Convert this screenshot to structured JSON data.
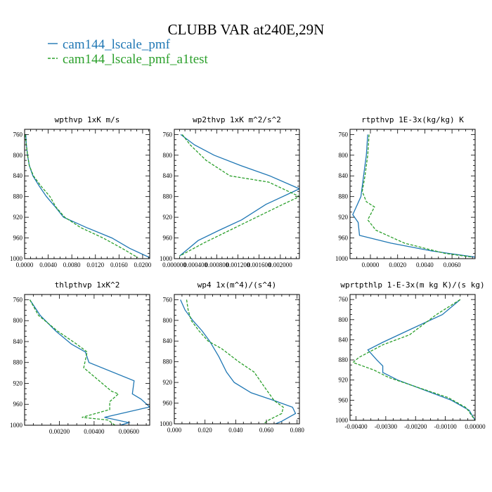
{
  "figure": {
    "title": "CLUBB VAR at240E,29N"
  },
  "colors": {
    "series1": "#1f77b4",
    "series2": "#2ca02c"
  },
  "legend": [
    {
      "label": "cam144_lscale_pmf",
      "color": "#1f77b4",
      "dash": "solid"
    },
    {
      "label": "cam144_lscale_pmf_a1test",
      "color": "#2ca02c",
      "dash": "dashed"
    }
  ],
  "chart_data": [
    {
      "type": "line",
      "title": "wpthvp  1xK m/s",
      "xlim": [
        0,
        0.0212
      ],
      "ylim": [
        1000,
        750
      ],
      "yticks": [
        760,
        800,
        840,
        880,
        920,
        960,
        1000
      ],
      "xtick_values": [
        0.0,
        0.004,
        0.008,
        0.012,
        0.016,
        0.02
      ],
      "xtick_labels": [
        "0.0000",
        "0.0040",
        "0.0080",
        "0.0120",
        "0.0160",
        "0.0200"
      ],
      "series": [
        {
          "name": "cam144_lscale_pmf",
          "points": [
            [
              0.0002,
              760
            ],
            [
              0.0003,
              780
            ],
            [
              0.0005,
              800
            ],
            [
              0.0008,
              820
            ],
            [
              0.0014,
              840
            ],
            [
              0.0025,
              860
            ],
            [
              0.0037,
              880
            ],
            [
              0.0052,
              900
            ],
            [
              0.0066,
              920
            ],
            [
              0.0105,
              940
            ],
            [
              0.0148,
              960
            ],
            [
              0.0178,
              980
            ],
            [
              0.0212,
              998
            ]
          ]
        },
        {
          "name": "cam144_lscale_pmf_a1test",
          "points": [
            [
              0.0001,
              760
            ],
            [
              0.0003,
              780
            ],
            [
              0.0005,
              800
            ],
            [
              0.0008,
              820
            ],
            [
              0.0015,
              840
            ],
            [
              0.0028,
              860
            ],
            [
              0.0043,
              880
            ],
            [
              0.0053,
              900
            ],
            [
              0.0068,
              920
            ],
            [
              0.0095,
              940
            ],
            [
              0.0133,
              960
            ],
            [
              0.0165,
              980
            ],
            [
              0.0192,
              998
            ]
          ]
        }
      ]
    },
    {
      "type": "line",
      "title": "wp2thvp  1xK m^2/s^2",
      "xlim": [
        0,
        0.00236
      ],
      "ylim": [
        1000,
        750
      ],
      "yticks": [
        760,
        800,
        840,
        880,
        920,
        960,
        1000
      ],
      "xtick_values": [
        0.0,
        0.0004,
        0.0008,
        0.0012,
        0.0016,
        0.002
      ],
      "xtick_labels": [
        "0.000000",
        "0.000400",
        "0.000800",
        "0.001200",
        "0.001600",
        "0.002000"
      ],
      "series": [
        {
          "name": "cam144_lscale_pmf",
          "points": [
            [
              0.00012,
              760
            ],
            [
              0.00038,
              780
            ],
            [
              0.00075,
              800
            ],
            [
              0.00125,
              820
            ],
            [
              0.0018,
              840
            ],
            [
              0.00236,
              865
            ],
            [
              0.00173,
              895
            ],
            [
              0.00127,
              925
            ],
            [
              0.00085,
              945
            ],
            [
              0.00045,
              965
            ],
            [
              0.0001,
              995
            ]
          ]
        },
        {
          "name": "cam144_lscale_pmf_a1test",
          "points": [
            [
              0.00015,
              760
            ],
            [
              0.0003,
              780
            ],
            [
              0.0006,
              810
            ],
            [
              0.00105,
              840
            ],
            [
              0.00178,
              852
            ],
            [
              0.00236,
              880
            ],
            [
              0.00205,
              895
            ],
            [
              0.00165,
              915
            ],
            [
              0.00115,
              940
            ],
            [
              0.00055,
              970
            ],
            [
              0.0001,
              995
            ]
          ]
        }
      ]
    },
    {
      "type": "line",
      "title": "rtpthvp  1E-3x(kg/kg) K",
      "xlim": [
        -0.0015,
        0.0077
      ],
      "ylim": [
        1000,
        750
      ],
      "yticks": [
        760,
        800,
        840,
        880,
        920,
        960,
        1000
      ],
      "xtick_values": [
        0.0,
        0.002,
        0.004,
        0.006
      ],
      "xtick_labels": [
        "0.0000",
        "0.0020",
        "0.0040",
        "0.0060"
      ],
      "series": [
        {
          "name": "cam144_lscale_pmf",
          "points": [
            [
              -0.0002,
              760
            ],
            [
              -0.0003,
              800
            ],
            [
              -0.0005,
              840
            ],
            [
              -0.0007,
              880
            ],
            [
              -0.0013,
              915
            ],
            [
              -0.0009,
              930
            ],
            [
              -0.0008,
              955
            ],
            [
              0.0015,
              970
            ],
            [
              0.0045,
              985
            ],
            [
              0.0077,
              997
            ]
          ]
        },
        {
          "name": "cam144_lscale_pmf_a1test",
          "points": [
            [
              -0.0001,
              760
            ],
            [
              -0.0002,
              800
            ],
            [
              -0.0004,
              840
            ],
            [
              -0.0006,
              870
            ],
            [
              -0.0003,
              890
            ],
            [
              0.0003,
              900
            ],
            [
              -0.0002,
              925
            ],
            [
              0.0004,
              945
            ],
            [
              0.0025,
              970
            ],
            [
              0.0055,
              990
            ],
            [
              0.0075,
              997
            ]
          ]
        }
      ]
    },
    {
      "type": "line",
      "title": "thlpthvp  1xK^2",
      "xlim": [
        0,
        0.0072
      ],
      "ylim": [
        1000,
        750
      ],
      "yticks": [
        760,
        800,
        840,
        880,
        920,
        960,
        1000
      ],
      "xtick_values": [
        0.002,
        0.004,
        0.006
      ],
      "xtick_labels": [
        "0.00200",
        "0.00400",
        "0.00600"
      ],
      "series": [
        {
          "name": "cam144_lscale_pmf",
          "points": [
            [
              0.0003,
              760
            ],
            [
              0.0009,
              790
            ],
            [
              0.0018,
              820
            ],
            [
              0.0027,
              845
            ],
            [
              0.0035,
              860
            ],
            [
              0.0037,
              880
            ],
            [
              0.0063,
              915
            ],
            [
              0.0062,
              940
            ],
            [
              0.0067,
              950
            ],
            [
              0.0072,
              965
            ],
            [
              0.0046,
              985
            ],
            [
              0.006,
              995
            ],
            [
              0.0055,
              1000
            ]
          ]
        },
        {
          "name": "cam144_lscale_pmf_a1test",
          "points": [
            [
              0.0003,
              760
            ],
            [
              0.0008,
              790
            ],
            [
              0.0019,
              820
            ],
            [
              0.003,
              845
            ],
            [
              0.0036,
              860
            ],
            [
              0.0034,
              890
            ],
            [
              0.005,
              935
            ],
            [
              0.0054,
              940
            ],
            [
              0.0049,
              955
            ],
            [
              0.0049,
              970
            ],
            [
              0.0033,
              985
            ],
            [
              0.0048,
              990
            ],
            [
              0.0052,
              1000
            ]
          ]
        }
      ]
    },
    {
      "type": "line",
      "title": "wp4  1x(m^4)/(s^4)",
      "xlim": [
        0,
        0.0815
      ],
      "ylim": [
        1000,
        750
      ],
      "yticks": [
        760,
        800,
        840,
        880,
        920,
        960,
        1000
      ],
      "xtick_values": [
        0.0,
        0.02,
        0.04,
        0.06,
        0.08
      ],
      "xtick_labels": [
        "0.000",
        "0.020",
        "0.040",
        "0.060",
        "0.080"
      ],
      "series": [
        {
          "name": "cam144_lscale_pmf",
          "points": [
            [
              0.004,
              760
            ],
            [
              0.007,
              780
            ],
            [
              0.012,
              800
            ],
            [
              0.018,
              820
            ],
            [
              0.023,
              840
            ],
            [
              0.029,
              870
            ],
            [
              0.034,
              900
            ],
            [
              0.039,
              920
            ],
            [
              0.05,
              940
            ],
            [
              0.065,
              955
            ],
            [
              0.077,
              968
            ],
            [
              0.079,
              980
            ],
            [
              0.07,
              995
            ],
            [
              0.066,
              1000
            ]
          ]
        },
        {
          "name": "cam144_lscale_pmf_a1test",
          "points": [
            [
              0.008,
              760
            ],
            [
              0.009,
              780
            ],
            [
              0.011,
              800
            ],
            [
              0.016,
              820
            ],
            [
              0.022,
              840
            ],
            [
              0.031,
              855
            ],
            [
              0.042,
              880
            ],
            [
              0.052,
              900
            ],
            [
              0.059,
              930
            ],
            [
              0.065,
              955
            ],
            [
              0.071,
              968
            ],
            [
              0.07,
              980
            ],
            [
              0.062,
              992
            ],
            [
              0.058,
              1000
            ]
          ]
        }
      ]
    },
    {
      "type": "line",
      "title": "wprtpthlp  1-E-3x(m kg K)/(s kg)",
      "xlim": [
        -0.0042,
        0
      ],
      "ylim": [
        1000,
        750
      ],
      "yticks": [
        760,
        800,
        840,
        880,
        920,
        960,
        1000
      ],
      "xtick_values": [
        -0.004,
        -0.003,
        -0.002,
        -0.001,
        0.0
      ],
      "xtick_labels": [
        "-0.00400",
        "-0.00300",
        "-0.00200",
        "-0.00100",
        "0.00000"
      ],
      "series": [
        {
          "name": "cam144_lscale_pmf",
          "points": [
            [
              -0.0005,
              760
            ],
            [
              -0.0011,
              790
            ],
            [
              -0.0022,
              820
            ],
            [
              -0.0031,
              845
            ],
            [
              -0.0036,
              860
            ],
            [
              -0.0033,
              880
            ],
            [
              -0.0031,
              892
            ],
            [
              -0.0031,
              905
            ],
            [
              -0.0026,
              920
            ],
            [
              -0.0017,
              940
            ],
            [
              -0.0008,
              960
            ],
            [
              -0.0002,
              980
            ],
            [
              0,
              1000
            ]
          ]
        },
        {
          "name": "cam144_lscale_pmf_a1test",
          "points": [
            [
              -0.0005,
              760
            ],
            [
              -0.0013,
              790
            ],
            [
              -0.0022,
              830
            ],
            [
              -0.0031,
              850
            ],
            [
              -0.0039,
              875
            ],
            [
              -0.0041,
              885
            ],
            [
              -0.0034,
              900
            ],
            [
              -0.0029,
              915
            ],
            [
              -0.0019,
              935
            ],
            [
              -0.0009,
              955
            ],
            [
              -0.0003,
              975
            ],
            [
              0,
              1000
            ]
          ]
        }
      ]
    }
  ]
}
